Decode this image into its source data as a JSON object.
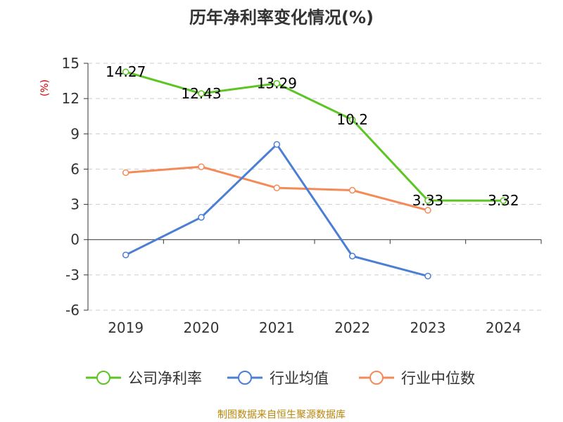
{
  "source": "制图数据来自恒生聚源数据库",
  "chart_data": {
    "type": "line",
    "title": "历年净利率变化情况(%)",
    "ylabel": "(%)",
    "xlabel": "",
    "categories": [
      "2019",
      "2020",
      "2021",
      "2022",
      "2023",
      "2024"
    ],
    "ylim": [
      -6,
      15
    ],
    "yticks": [
      15,
      12,
      9,
      6,
      3,
      0,
      -3,
      -6
    ],
    "ytick_labels": [
      "15",
      "12",
      "9",
      "6",
      "3",
      "0",
      "-3",
      "-6"
    ],
    "grid": true,
    "legend_position": "bottom",
    "series": [
      {
        "name": "公司净利率",
        "color": "#5cc523",
        "values": [
          14.27,
          12.43,
          13.29,
          10.2,
          3.33,
          3.32
        ],
        "labels": [
          "14.27",
          "12.43",
          "13.29",
          "10.2",
          "3.33",
          "3.32"
        ]
      },
      {
        "name": "行业均值",
        "color": "#4b7fd6",
        "values": [
          -1.3,
          1.9,
          8.1,
          -1.4,
          -3.1,
          null
        ]
      },
      {
        "name": "行业中位数",
        "color": "#f58a59",
        "values": [
          5.7,
          6.2,
          4.4,
          4.2,
          2.5,
          null
        ]
      }
    ],
    "colors": {
      "text": "#333333",
      "ylabel": "#cc0000",
      "grid": "#cccccc",
      "axis": "#333333",
      "source": "#b8860b"
    }
  }
}
